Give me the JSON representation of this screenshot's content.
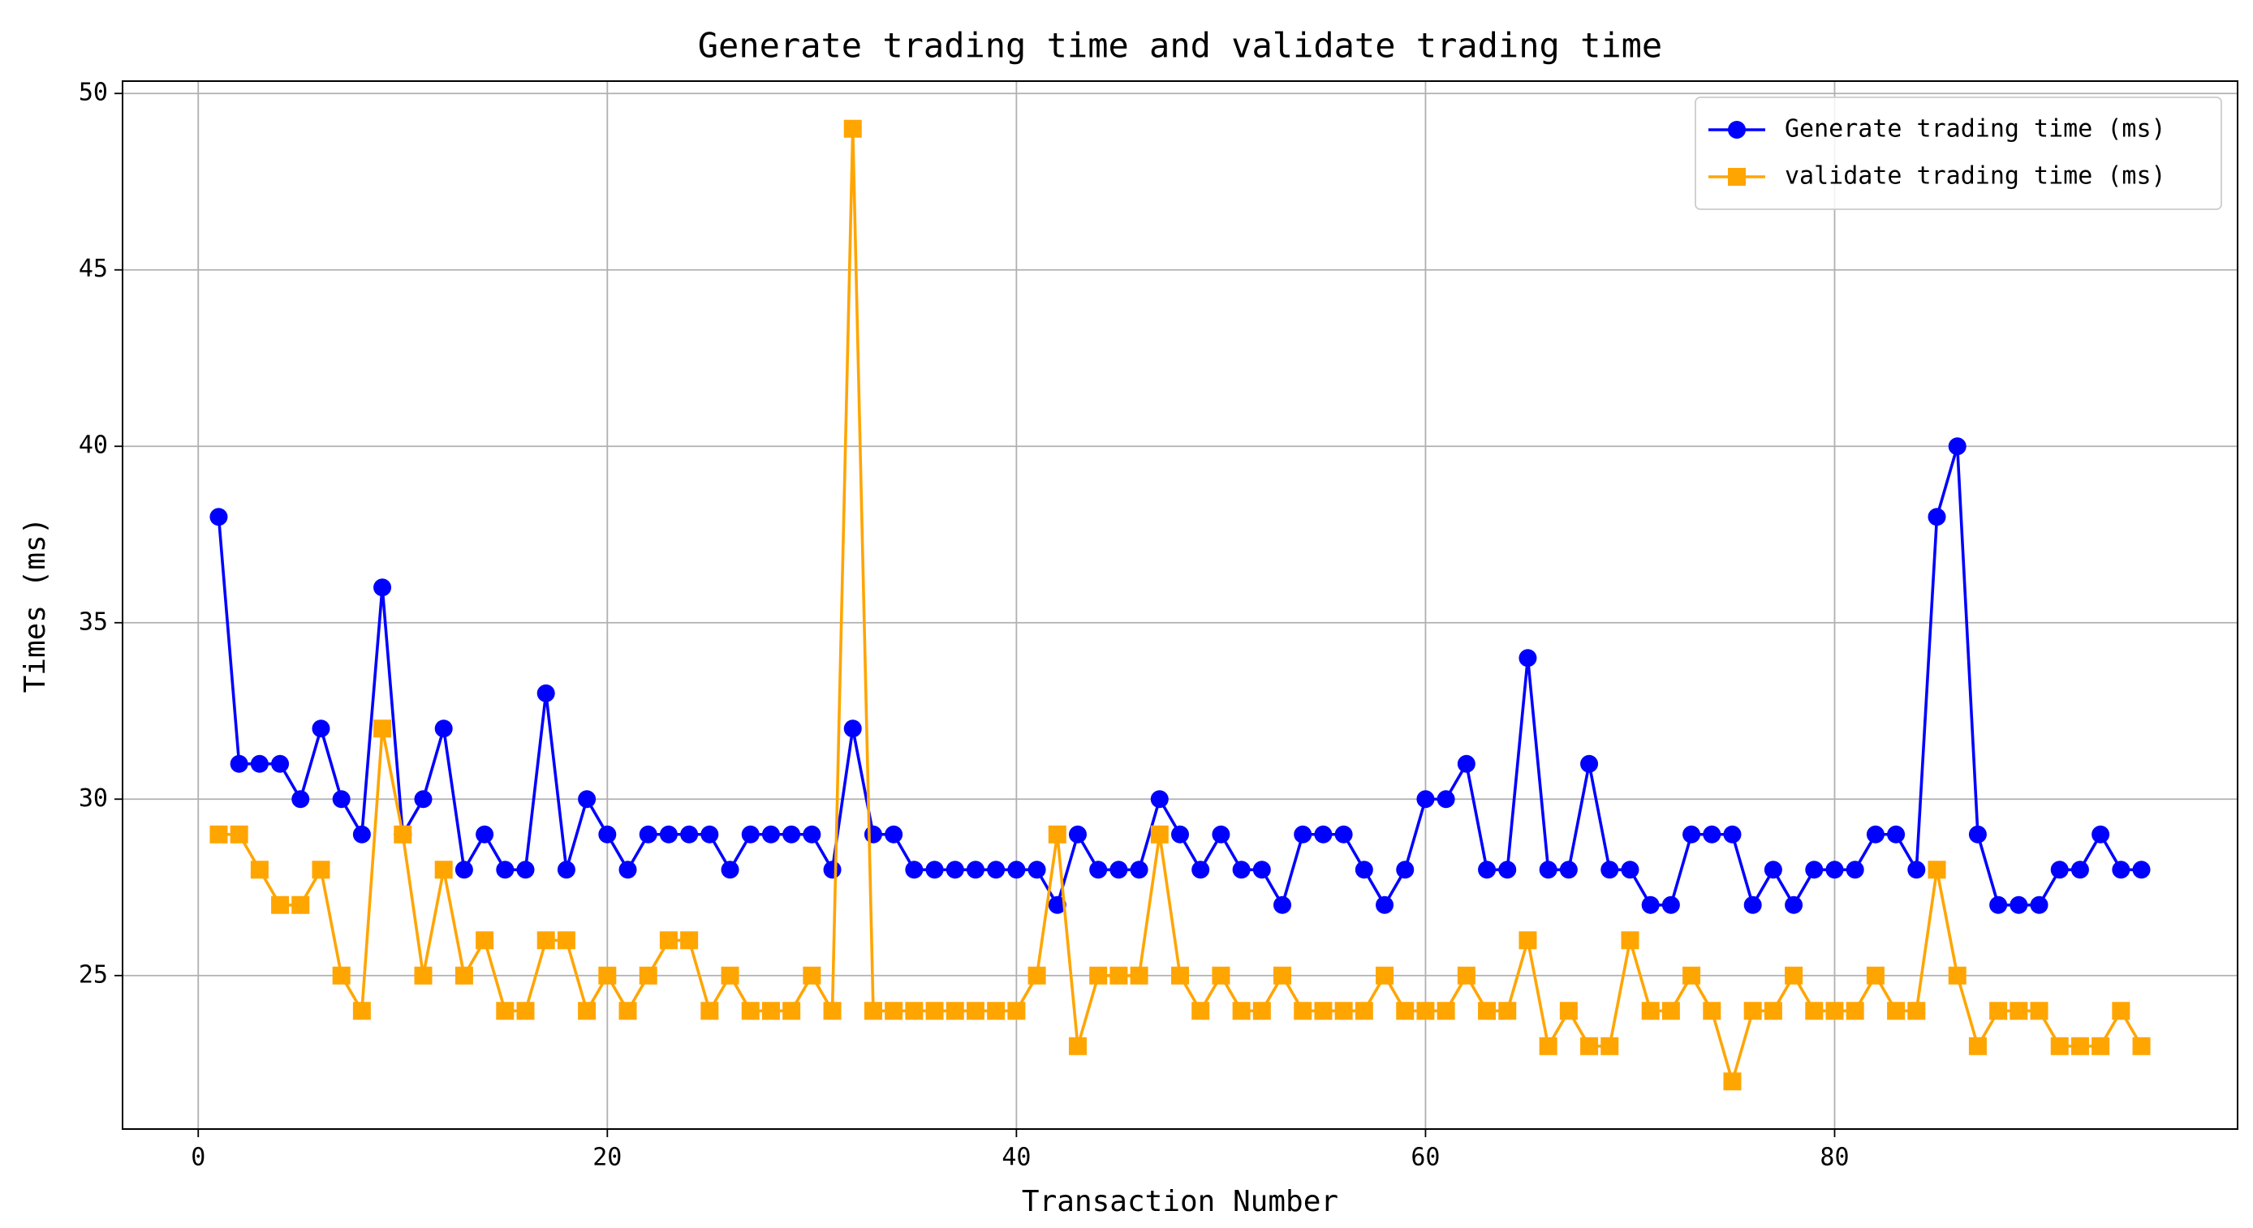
{
  "chart_data": {
    "type": "line",
    "title": "Generate trading time and validate trading time",
    "x_label": "Transaction Number",
    "y_label": "Times (ms)",
    "x": [
      1,
      2,
      3,
      4,
      5,
      6,
      7,
      8,
      9,
      10,
      11,
      12,
      13,
      14,
      15,
      16,
      17,
      18,
      19,
      20,
      21,
      22,
      23,
      24,
      25,
      26,
      27,
      28,
      29,
      30,
      31,
      32,
      33,
      34,
      35,
      36,
      37,
      38,
      39,
      40,
      41,
      42,
      43,
      44,
      45,
      46,
      47,
      48,
      49,
      50,
      51,
      52,
      53,
      54,
      55,
      56,
      57,
      58,
      59,
      60,
      61,
      62,
      63,
      64,
      65,
      66,
      67,
      68,
      69,
      70,
      71,
      72,
      73,
      74,
      75,
      76,
      77,
      78,
      79,
      80,
      81,
      82,
      83,
      84,
      85,
      86,
      87,
      88,
      89,
      90,
      91,
      92,
      93,
      94,
      95
    ],
    "series": [
      {
        "name": "Generate trading time (ms)",
        "color": "#0000ff",
        "marker": "circle",
        "values": [
          38,
          31,
          31,
          31,
          30,
          32,
          30,
          29,
          36,
          29,
          30,
          32,
          28,
          29,
          28,
          28,
          33,
          28,
          30,
          29,
          28,
          29,
          29,
          29,
          29,
          28,
          29,
          29,
          29,
          29,
          28,
          32,
          29,
          29,
          28,
          28,
          28,
          28,
          28,
          28,
          28,
          27,
          29,
          28,
          28,
          28,
          30,
          29,
          28,
          29,
          28,
          28,
          27,
          29,
          29,
          29,
          28,
          27,
          28,
          30,
          30,
          31,
          28,
          28,
          34,
          28,
          28,
          31,
          28,
          28,
          27,
          27,
          29,
          29,
          29,
          27,
          28,
          27,
          28,
          28,
          28,
          29,
          29,
          28,
          38,
          40,
          29,
          27,
          27,
          27,
          28,
          28,
          29,
          28,
          28
        ]
      },
      {
        "name": "validate trading time (ms)",
        "color": "#ffa500",
        "marker": "square",
        "values": [
          29,
          29,
          28,
          27,
          27,
          28,
          25,
          24,
          32,
          29,
          25,
          28,
          25,
          26,
          24,
          24,
          26,
          26,
          24,
          25,
          24,
          25,
          26,
          26,
          24,
          25,
          24,
          24,
          24,
          25,
          24,
          49,
          24,
          24,
          24,
          24,
          24,
          24,
          24,
          24,
          25,
          29,
          23,
          25,
          25,
          25,
          29,
          25,
          24,
          25,
          24,
          24,
          25,
          24,
          24,
          24,
          24,
          25,
          24,
          24,
          24,
          25,
          24,
          24,
          26,
          23,
          24,
          23,
          23,
          26,
          24,
          24,
          25,
          24,
          22,
          24,
          24,
          25,
          24,
          24,
          24,
          25,
          24,
          24,
          28,
          25,
          23,
          24,
          24,
          24,
          23,
          23,
          23,
          24,
          23
        ]
      }
    ],
    "xlim": [
      -3.7,
      99.7
    ],
    "xticks": [
      0,
      20,
      40,
      60,
      80
    ],
    "ylim": [
      20.65,
      50.35
    ],
    "yticks": [
      25,
      30,
      35,
      40,
      45,
      50
    ],
    "grid": true,
    "legend": "upper right"
  }
}
